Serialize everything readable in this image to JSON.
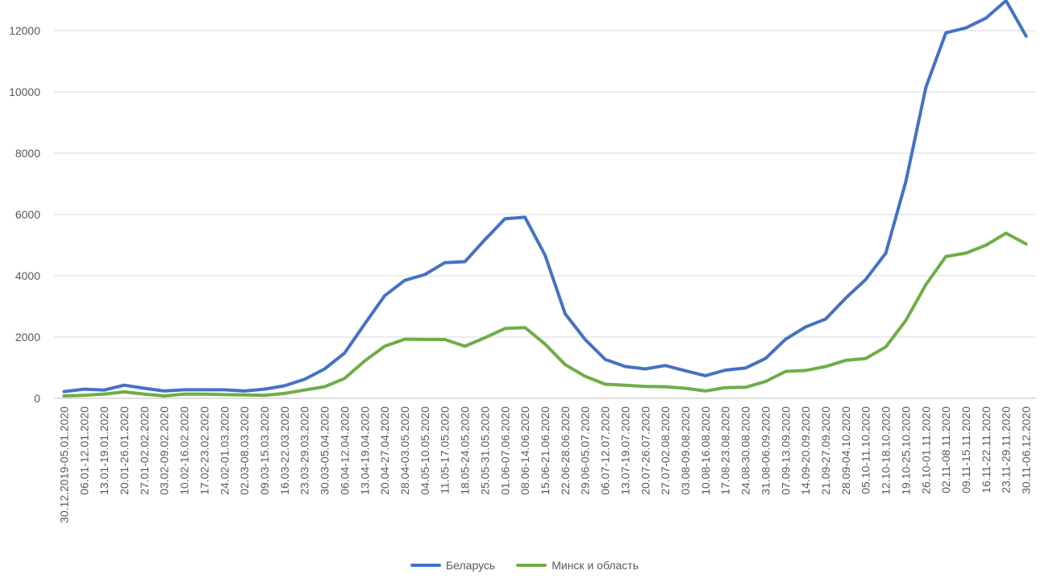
{
  "chart_data": {
    "type": "line",
    "title": "",
    "xlabel": "",
    "ylabel": "",
    "ylim": [
      0,
      13000
    ],
    "yticks": [
      0,
      2000,
      4000,
      6000,
      8000,
      10000,
      12000
    ],
    "grid": true,
    "legend_position": "bottom",
    "categories": [
      "30.12.2019-05.01.2020",
      "06.01-12.01.2020",
      "13.01-19.01.2020",
      "20.01-26.01.2020",
      "27.01-02.02.2020",
      "03.02-09.02.2020",
      "10.02-16.02.2020",
      "17.02-23.02.2020",
      "24.02-01.03.2020",
      "02.03-08.03.2020",
      "09.03-15.03.2020",
      "16.03-22.03.2020",
      "23.03-29.03.2020",
      "30.03-05.04.2020",
      "06.04-12.04.2020",
      "13.04-19.04.2020",
      "20.04-27.04.2020",
      "28.04-03.05.2020",
      "04.05-10.05.2020",
      "11.05-17.05.2020",
      "18.05-24.05.2020",
      "25.05-31.05.2020",
      "01.06-07.06.2020",
      "08.06-14.06.2020",
      "15.06-21.06.2020",
      "22.06-28.06.2020",
      "29.06-05.07.2020",
      "06.07-12.07.2020",
      "13.07-19.07.2020",
      "20.07-26.07.2020",
      "27.07-02.08.2020",
      "03.08-09.08.2020",
      "10.08-16.08.2020",
      "17.08-23.08.2020",
      "24.08-30.08.2020",
      "31.08-06.09.2020",
      "07.09-13.09.2020",
      "14.09-20.09.2020",
      "21.09-27.09.2020",
      "28.09-04.10.2020",
      "05.10-11.10.2020",
      "12.10-18.10.2020",
      "19.10-25.10.2020",
      "26.10-01.11.2020",
      "02.11-08.11.2020",
      "09.11-15.11.2020",
      "16.11-22.11.2020",
      "23.11-29.11.2020",
      "30.11-06.12.2020"
    ],
    "series": [
      {
        "name": "Беларусь",
        "color": "#4472C4",
        "values": [
          220,
          300,
          270,
          430,
          330,
          240,
          280,
          280,
          280,
          240,
          300,
          410,
          620,
          960,
          1480,
          2430,
          3350,
          3850,
          4040,
          4430,
          4460,
          5180,
          5860,
          5910,
          4670,
          2760,
          1920,
          1270,
          1040,
          960,
          1070,
          900,
          740,
          920,
          990,
          1300,
          1930,
          2330,
          2590,
          3270,
          3880,
          4740,
          7070,
          10150,
          11930,
          12090,
          12410,
          12980,
          11820
        ]
      },
      {
        "name": "Минск и область",
        "color": "#70AD47",
        "values": [
          80,
          100,
          140,
          210,
          140,
          80,
          140,
          140,
          120,
          110,
          100,
          160,
          270,
          380,
          650,
          1220,
          1700,
          1930,
          1920,
          1920,
          1700,
          1980,
          2280,
          2310,
          1770,
          1100,
          720,
          460,
          430,
          390,
          380,
          330,
          240,
          350,
          360,
          550,
          880,
          910,
          1040,
          1240,
          1300,
          1680,
          2540,
          3710,
          4630,
          4740,
          5000,
          5390,
          5040
        ]
      }
    ]
  }
}
